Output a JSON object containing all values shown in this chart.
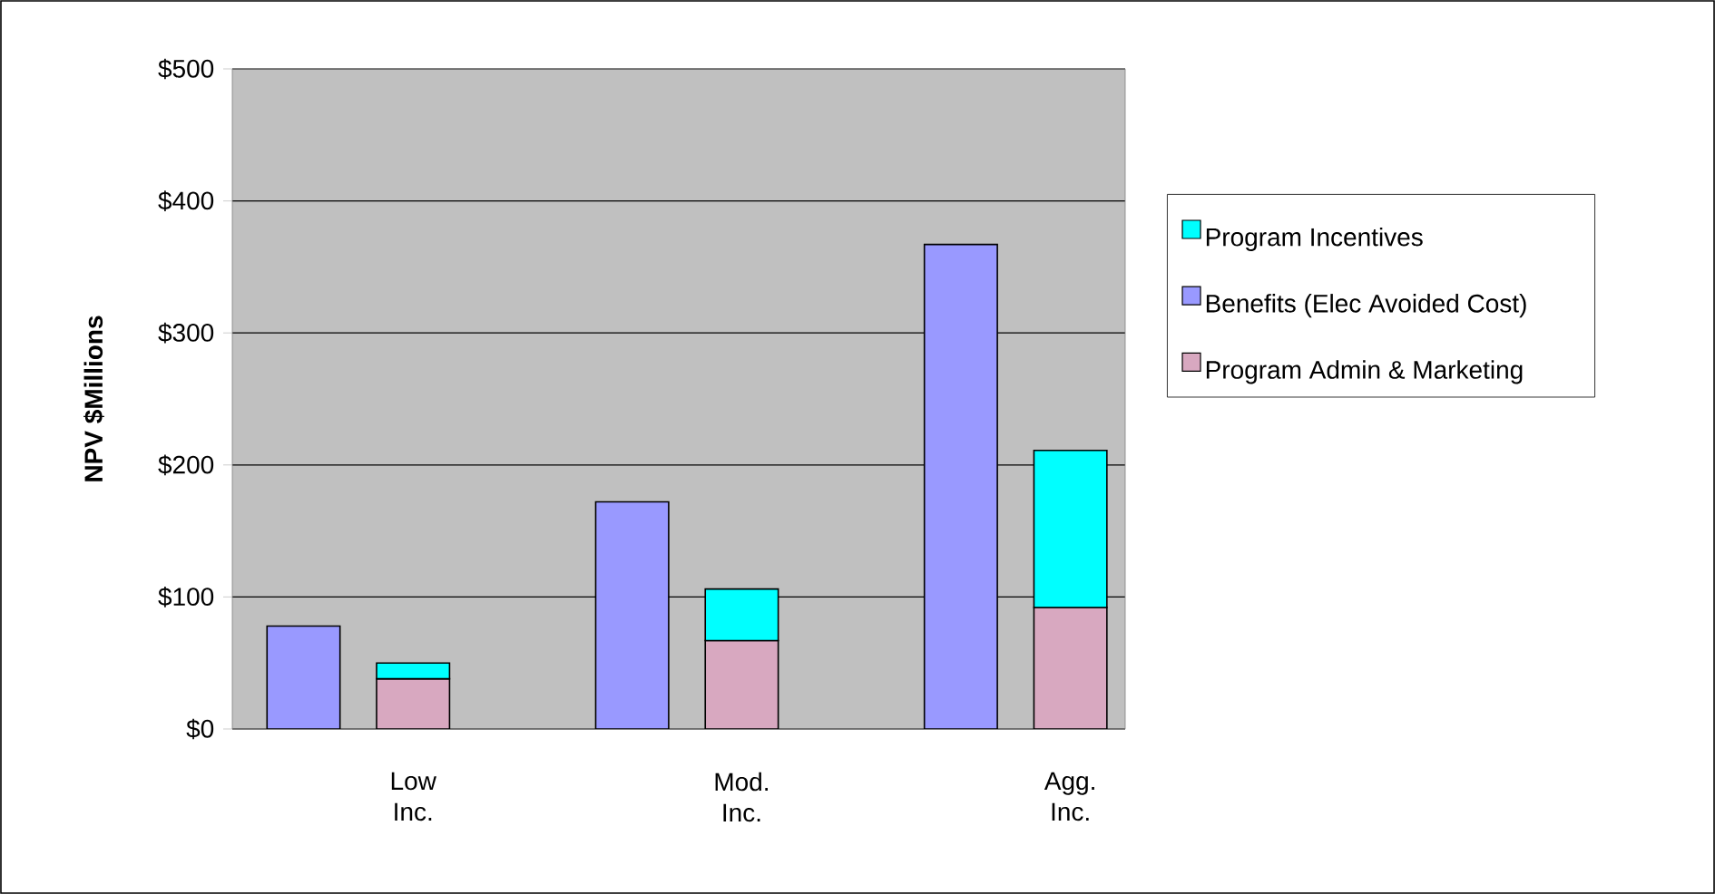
{
  "chart_data": {
    "type": "bar",
    "ylabel": "NPV $Millions",
    "categories": [
      null,
      "Low Inc.",
      null,
      null,
      "Mod. Inc.",
      null,
      null,
      "Agg. Inc."
    ],
    "series": [
      {
        "name": "Program Admin & Marketing",
        "color": "#d8a8c0",
        "values": [
          null,
          38,
          null,
          null,
          67,
          null,
          null,
          92
        ]
      },
      {
        "name": "Benefits (Elec Avoided Cost)",
        "color": "#9999ff",
        "values": [
          78,
          null,
          null,
          172,
          null,
          null,
          367,
          null
        ]
      },
      {
        "name": "Program Incentives",
        "color": "#00ffff",
        "values": [
          null,
          12,
          null,
          null,
          39,
          null,
          null,
          119
        ]
      }
    ],
    "stacked": true,
    "ylim": [
      0,
      500
    ],
    "yticks": [
      {
        "value": 0,
        "label": "$0"
      },
      {
        "value": 100,
        "label": "$100"
      },
      {
        "value": 200,
        "label": "$200"
      },
      {
        "value": 300,
        "label": "$300"
      },
      {
        "value": 400,
        "label": "$400"
      },
      {
        "value": 500,
        "label": "$500"
      }
    ],
    "grid": "y",
    "legend": "right"
  }
}
